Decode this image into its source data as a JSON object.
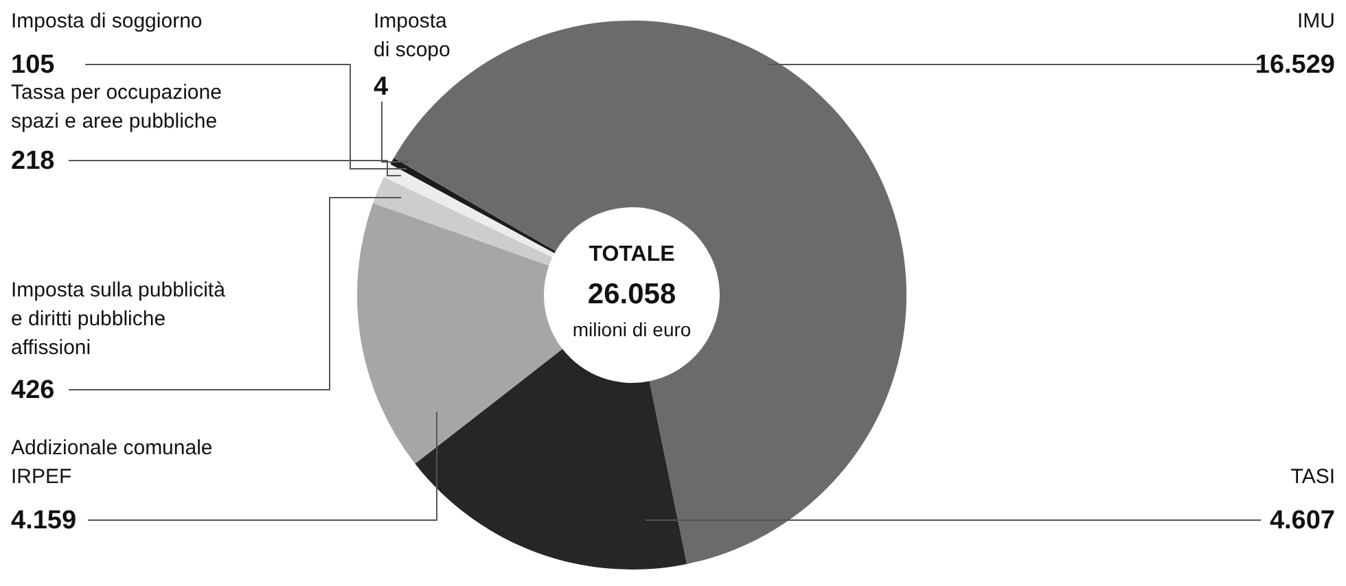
{
  "chart_data": {
    "type": "donut",
    "categories": [
      "IMU",
      "TASI",
      "Addizionale comunale\nIRPEF",
      "Imposta sulla pubblicità\ne diritti pubbliche\naffissioni",
      "Tassa per occupazione\nspazi e aree pubbliche",
      "Imposta di soggiorno",
      "Imposta\ndi scopo"
    ],
    "values": [
      16529,
      4607,
      4159,
      426,
      218,
      105,
      4
    ],
    "value_labels": [
      "16.529",
      "4.607",
      "4.159",
      "426",
      "218",
      "105",
      "4"
    ],
    "colors": [
      "#6b6b6b",
      "#262626",
      "#a6a6a6",
      "#cdcdcd",
      "#ececec",
      "#1c1c1c",
      "#454545"
    ],
    "annotations": [
      "TOTALE",
      "26.058",
      "milioni di euro"
    ]
  }
}
